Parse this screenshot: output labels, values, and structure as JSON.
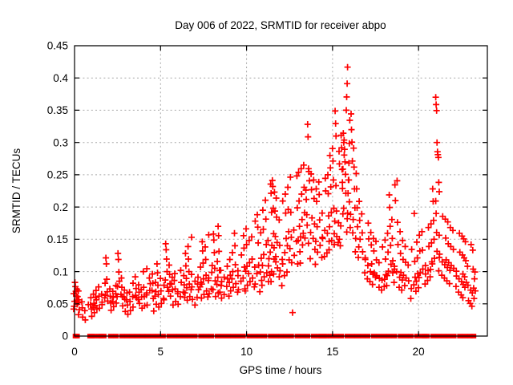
{
  "window": {
    "title": "Day 006 of 2022, SRMTID for receiver abpo"
  },
  "chart_data": {
    "type": "scatter",
    "title": "Day 006 of 2022, SRMTID for receiver abpo",
    "xlabel": "GPS time / hours",
    "ylabel": "SRMTID / TECUs",
    "xlim": [
      0,
      24
    ],
    "ylim": [
      0,
      0.45
    ],
    "x_ticks": [
      0,
      5,
      10,
      15,
      20
    ],
    "x_tick_labels": [
      "0",
      "5",
      "10",
      "15",
      "20"
    ],
    "y_ticks": [
      0,
      0.05,
      0.1,
      0.15,
      0.2,
      0.25,
      0.3,
      0.35,
      0.4,
      0.45
    ],
    "y_tick_labels": [
      "0",
      "0.05",
      "0.1",
      "0.15",
      "0.2",
      "0.25",
      "0.3",
      "0.35",
      "0.4",
      "0.45"
    ],
    "grid": true,
    "legend": "none",
    "marker": "plus",
    "marker_color": "#ff0000",
    "grid_color": "#a8a8a8",
    "frame_color": "#000000",
    "series_name": "SRMTID",
    "columns": [
      [
        0.05,
        [
          0.04,
          0.048,
          0.055,
          0.062,
          0.07,
          0.078,
          0.085,
          0.052,
          0.045,
          0.065
        ]
      ],
      [
        0.15,
        [
          0.035,
          0.05,
          0.06,
          0.072
        ]
      ],
      [
        0.25,
        [
          0.042,
          0.058,
          0.068
        ]
      ],
      [
        0.5,
        [
          0.03,
          0.045,
          0.055
        ]
      ],
      [
        0.7,
        [
          0.025,
          0.04,
          0.05
        ]
      ],
      [
        0.9,
        [
          0.03,
          0.042,
          0.06,
          0.05
        ]
      ],
      [
        1.1,
        [
          0.035,
          0.05,
          0.065,
          0.045
        ]
      ],
      [
        1.3,
        [
          0.04,
          0.055,
          0.07,
          0.06,
          0.048
        ]
      ],
      [
        1.5,
        [
          0.045,
          0.06,
          0.075,
          0.052,
          0.065
        ]
      ],
      [
        1.7,
        [
          0.05,
          0.065,
          0.08,
          0.058
        ]
      ],
      [
        1.85,
        [
          0.055,
          0.07,
          0.09,
          0.11,
          0.12
        ]
      ],
      [
        2.1,
        [
          0.04,
          0.052,
          0.063,
          0.075
        ]
      ],
      [
        2.3,
        [
          0.045,
          0.06,
          0.07,
          0.055,
          0.08
        ]
      ],
      [
        2.5,
        [
          0.05,
          0.065,
          0.085,
          0.1,
          0.12,
          0.13,
          0.075,
          0.06
        ]
      ],
      [
        2.7,
        [
          0.045,
          0.06,
          0.075,
          0.09,
          0.065
        ]
      ],
      [
        2.9,
        [
          0.04,
          0.055,
          0.07,
          0.06
        ]
      ],
      [
        3.1,
        [
          0.035,
          0.05,
          0.065,
          0.055
        ]
      ],
      [
        3.3,
        [
          0.04,
          0.055,
          0.07,
          0.08,
          0.06
        ]
      ],
      [
        3.5,
        [
          0.045,
          0.06,
          0.075,
          0.065,
          0.09
        ]
      ],
      [
        3.7,
        [
          0.05,
          0.068,
          0.08,
          0.058
        ]
      ],
      [
        3.9,
        [
          0.042,
          0.06,
          0.072
        ]
      ],
      [
        4.1,
        [
          0.045,
          0.06,
          0.075,
          0.1,
          0.105,
          0.065
        ]
      ],
      [
        4.3,
        [
          0.05,
          0.065,
          0.08,
          0.07,
          0.09
        ]
      ],
      [
        4.5,
        [
          0.04,
          0.06,
          0.08,
          0.095,
          0.07
        ]
      ],
      [
        4.7,
        [
          0.05,
          0.07,
          0.085,
          0.06
        ]
      ],
      [
        4.9,
        [
          0.045,
          0.065,
          0.08,
          0.1,
          0.11
        ]
      ],
      [
        5.1,
        [
          0.05,
          0.07,
          0.09,
          0.08,
          0.06
        ]
      ],
      [
        5.3,
        [
          0.055,
          0.075,
          0.1,
          0.12,
          0.135,
          0.145,
          0.085
        ]
      ],
      [
        5.5,
        [
          0.06,
          0.08,
          0.095,
          0.11,
          0.07
        ]
      ],
      [
        5.7,
        [
          0.05,
          0.07,
          0.09,
          0.08
        ]
      ],
      [
        5.9,
        [
          0.055,
          0.075,
          0.095,
          0.085,
          0.065
        ]
      ],
      [
        6.1,
        [
          0.05,
          0.07,
          0.085,
          0.1,
          0.06
        ]
      ],
      [
        6.3,
        [
          0.06,
          0.08,
          0.095,
          0.07
        ]
      ],
      [
        6.5,
        [
          0.055,
          0.075,
          0.09,
          0.11,
          0.13,
          0.065
        ]
      ],
      [
        6.7,
        [
          0.06,
          0.08,
          0.1,
          0.12,
          0.14,
          0.155,
          0.07
        ]
      ],
      [
        6.9,
        [
          0.055,
          0.075,
          0.095,
          0.085
        ]
      ],
      [
        7.1,
        [
          0.05,
          0.07,
          0.09,
          0.08,
          0.06
        ]
      ],
      [
        7.3,
        [
          0.06,
          0.085,
          0.105,
          0.075
        ]
      ],
      [
        7.5,
        [
          0.065,
          0.09,
          0.115,
          0.13,
          0.145,
          0.08
        ]
      ],
      [
        7.7,
        [
          0.07,
          0.095,
          0.12,
          0.14,
          0.155,
          0.085,
          0.06
        ]
      ],
      [
        7.9,
        [
          0.065,
          0.09,
          0.11,
          0.1,
          0.075
        ]
      ],
      [
        8.1,
        [
          0.06,
          0.085,
          0.105,
          0.13,
          0.15,
          0.16,
          0.07
        ]
      ],
      [
        8.3,
        [
          0.065,
          0.09,
          0.115,
          0.08
        ]
      ],
      [
        8.45,
        [
          0.07,
          0.1,
          0.13,
          0.155,
          0.17,
          0.085
        ]
      ],
      [
        8.6,
        [
          0.06,
          0.08,
          0.1,
          0.09
        ]
      ],
      [
        8.8,
        [
          0.065,
          0.09,
          0.11,
          0.075
        ]
      ],
      [
        9.0,
        [
          0.07,
          0.095,
          0.12,
          0.085,
          0.06
        ]
      ],
      [
        9.2,
        [
          0.075,
          0.1,
          0.13,
          0.09
        ]
      ],
      [
        9.4,
        [
          0.08,
          0.11,
          0.14,
          0.16,
          0.095,
          0.07
        ]
      ],
      [
        9.6,
        [
          0.07,
          0.1,
          0.125,
          0.085
        ]
      ],
      [
        9.8,
        [
          0.075,
          0.105,
          0.135,
          0.155,
          0.09
        ]
      ],
      [
        10.0,
        [
          0.08,
          0.11,
          0.14,
          0.165,
          0.1,
          0.07
        ]
      ],
      [
        10.2,
        [
          0.085,
          0.115,
          0.15,
          0.095
        ]
      ],
      [
        10.4,
        [
          0.09,
          0.12,
          0.155,
          0.18,
          0.105,
          0.075
        ]
      ],
      [
        10.6,
        [
          0.08,
          0.11,
          0.145,
          0.17,
          0.19,
          0.095
        ]
      ],
      [
        10.8,
        [
          0.085,
          0.12,
          0.16,
          0.1,
          0.07
        ]
      ],
      [
        11.0,
        [
          0.09,
          0.125,
          0.165,
          0.195,
          0.11,
          0.08
        ]
      ],
      [
        11.2,
        [
          0.1,
          0.14,
          0.18,
          0.21,
          0.12,
          0.085
        ]
      ],
      [
        11.35,
        [
          0.11,
          0.15,
          0.19,
          0.22,
          0.235,
          0.13,
          0.095
        ]
      ],
      [
        11.5,
        [
          0.12,
          0.16,
          0.2,
          0.23,
          0.24,
          0.14,
          0.1,
          0.085
        ]
      ],
      [
        11.65,
        [
          0.115,
          0.155,
          0.195,
          0.225,
          0.135,
          0.095
        ]
      ],
      [
        11.8,
        [
          0.105,
          0.145,
          0.185,
          0.215,
          0.125,
          0.09
        ]
      ],
      [
        12.0,
        [
          0.1,
          0.14,
          0.18,
          0.21,
          0.12,
          0.08
        ]
      ],
      [
        12.2,
        [
          0.11,
          0.15,
          0.19,
          0.22,
          0.13,
          0.095
        ]
      ],
      [
        12.4,
        [
          0.12,
          0.16,
          0.195,
          0.23,
          0.14,
          0.1
        ]
      ],
      [
        12.6,
        [
          0.115,
          0.155,
          0.19,
          0.245,
          0.135
        ]
      ],
      [
        12.7,
        [
          0.037
        ]
      ],
      [
        12.85,
        [
          0.125,
          0.165,
          0.2,
          0.25,
          0.145
        ]
      ],
      [
        13.0,
        [
          0.13,
          0.17,
          0.21,
          0.255,
          0.15,
          0.11
        ]
      ],
      [
        13.2,
        [
          0.14,
          0.18,
          0.22,
          0.26,
          0.155,
          0.115
        ]
      ],
      [
        13.4,
        [
          0.15,
          0.19,
          0.23,
          0.265,
          0.16
        ]
      ],
      [
        13.55,
        [
          0.19,
          0.21,
          0.225,
          0.24,
          0.255,
          0.26,
          0.31,
          0.33,
          0.17
        ]
      ],
      [
        13.7,
        [
          0.145,
          0.185,
          0.225,
          0.25,
          0.16,
          0.12
        ]
      ],
      [
        13.9,
        [
          0.135,
          0.175,
          0.215,
          0.24,
          0.15
        ]
      ],
      [
        14.1,
        [
          0.13,
          0.17,
          0.21,
          0.23,
          0.145,
          0.11
        ]
      ],
      [
        14.3,
        [
          0.14,
          0.18,
          0.22,
          0.24,
          0.155,
          0.12
        ]
      ],
      [
        14.5,
        [
          0.15,
          0.19,
          0.225,
          0.245,
          0.165,
          0.125
        ]
      ],
      [
        14.7,
        [
          0.145,
          0.185,
          0.22,
          0.25,
          0.16,
          0.13
        ]
      ],
      [
        14.9,
        [
          0.15,
          0.19,
          0.23,
          0.26,
          0.28,
          0.17,
          0.135
        ]
      ],
      [
        15.1,
        [
          0.16,
          0.2,
          0.24,
          0.27,
          0.29,
          0.31,
          0.33,
          0.35,
          0.18,
          0.14
        ]
      ],
      [
        15.3,
        [
          0.155,
          0.195,
          0.235,
          0.265,
          0.285,
          0.175,
          0.145
        ]
      ],
      [
        15.5,
        [
          0.15,
          0.19,
          0.23,
          0.26,
          0.29,
          0.31,
          0.17,
          0.14
        ]
      ],
      [
        15.6,
        [
          0.28,
          0.3,
          0.315,
          0.26,
          0.24
        ]
      ],
      [
        15.75,
        [
          0.22,
          0.25,
          0.27,
          0.29,
          0.305,
          0.2,
          0.18,
          0.16
        ]
      ],
      [
        15.9,
        [
          0.415,
          0.39,
          0.37,
          0.35,
          0.335,
          0.3,
          0.27,
          0.24,
          0.22,
          0.19
        ]
      ],
      [
        16.05,
        [
          0.21,
          0.24,
          0.27,
          0.3,
          0.32,
          0.345,
          0.19,
          0.17
        ]
      ],
      [
        16.2,
        [
          0.2,
          0.23,
          0.26,
          0.29,
          0.18,
          0.16
        ]
      ],
      [
        16.4,
        [
          0.17,
          0.2,
          0.23,
          0.25,
          0.15,
          0.13
        ]
      ],
      [
        16.6,
        [
          0.15,
          0.18,
          0.21,
          0.14,
          0.12
        ]
      ],
      [
        16.8,
        [
          0.13,
          0.16,
          0.19,
          0.12,
          0.1
        ]
      ],
      [
        17.0,
        [
          0.12,
          0.15,
          0.175,
          0.11,
          0.09
        ]
      ],
      [
        17.2,
        [
          0.11,
          0.14,
          0.16,
          0.1,
          0.085
        ]
      ],
      [
        17.4,
        [
          0.1,
          0.13,
          0.15,
          0.095,
          0.08
        ]
      ],
      [
        17.6,
        [
          0.095,
          0.12,
          0.145,
          0.09,
          0.075
        ]
      ],
      [
        17.8,
        [
          0.09,
          0.115,
          0.14,
          0.085,
          0.07
        ]
      ],
      [
        18.0,
        [
          0.095,
          0.12,
          0.15,
          0.09,
          0.075
        ]
      ],
      [
        18.2,
        [
          0.1,
          0.13,
          0.16,
          0.095,
          0.08
        ]
      ],
      [
        18.4,
        [
          0.11,
          0.14,
          0.17,
          0.2,
          0.22,
          0.1
        ]
      ],
      [
        18.55,
        [
          0.115,
          0.15,
          0.18,
          0.21,
          0.235,
          0.105,
          0.085
        ]
      ],
      [
        18.7,
        [
          0.11,
          0.14,
          0.175,
          0.24,
          0.1
        ]
      ],
      [
        18.9,
        [
          0.1,
          0.13,
          0.16,
          0.09,
          0.075
        ]
      ],
      [
        19.1,
        [
          0.095,
          0.12,
          0.15,
          0.085,
          0.07
        ]
      ],
      [
        19.3,
        [
          0.09,
          0.115,
          0.14,
          0.08
        ]
      ],
      [
        19.5,
        [
          0.085,
          0.11,
          0.135,
          0.075,
          0.06
        ]
      ],
      [
        19.7,
        [
          0.09,
          0.115,
          0.19,
          0.08
        ]
      ],
      [
        19.9,
        [
          0.095,
          0.12,
          0.145,
          0.085,
          0.07
        ]
      ],
      [
        20.1,
        [
          0.1,
          0.13,
          0.155,
          0.09,
          0.075
        ]
      ],
      [
        20.3,
        [
          0.105,
          0.135,
          0.16,
          0.095,
          0.08
        ]
      ],
      [
        20.5,
        [
          0.11,
          0.14,
          0.17,
          0.1,
          0.085
        ]
      ],
      [
        20.7,
        [
          0.115,
          0.145,
          0.175,
          0.105,
          0.09
        ]
      ],
      [
        20.9,
        [
          0.12,
          0.15,
          0.18,
          0.21,
          0.23,
          0.11
        ]
      ],
      [
        21.1,
        [
          0.13,
          0.16,
          0.19,
          0.21,
          0.225,
          0.24,
          0.275,
          0.28,
          0.285,
          0.3,
          0.35,
          0.36,
          0.372,
          0.12,
          0.1
        ]
      ],
      [
        21.3,
        [
          0.125,
          0.155,
          0.185,
          0.115,
          0.095
        ]
      ],
      [
        21.5,
        [
          0.12,
          0.15,
          0.18,
          0.11,
          0.09
        ]
      ],
      [
        21.7,
        [
          0.115,
          0.145,
          0.175,
          0.105,
          0.085
        ]
      ],
      [
        21.9,
        [
          0.11,
          0.14,
          0.17,
          0.1,
          0.08
        ]
      ],
      [
        22.1,
        [
          0.105,
          0.135,
          0.165,
          0.095,
          0.075
        ]
      ],
      [
        22.3,
        [
          0.1,
          0.13,
          0.16,
          0.09,
          0.07
        ]
      ],
      [
        22.5,
        [
          0.095,
          0.125,
          0.155,
          0.085,
          0.065
        ]
      ],
      [
        22.65,
        [
          0.09,
          0.12,
          0.15,
          0.08,
          0.06
        ]
      ],
      [
        22.8,
        [
          0.085,
          0.115,
          0.145,
          0.075,
          0.055
        ]
      ],
      [
        22.95,
        [
          0.08,
          0.11,
          0.14,
          0.07,
          0.05
        ]
      ],
      [
        23.1,
        [
          0.075,
          0.105,
          0.135,
          0.065,
          0.045
        ]
      ],
      [
        23.25,
        [
          0.07,
          0.1,
          0.09,
          0.06
        ]
      ]
    ],
    "zero_row_hours": [
      0.05,
      0.15,
      0.9,
      1.0,
      1.15,
      1.45,
      1.55,
      1.7,
      2.1,
      2.4,
      2.75,
      3.05,
      3.35,
      3.65,
      3.95,
      4.25,
      4.55,
      4.85,
      5.15,
      5.5,
      5.8,
      6.1,
      6.4,
      6.7,
      7.0,
      7.35,
      7.65,
      7.95,
      8.3,
      8.6,
      8.9,
      9.2,
      9.5,
      9.8,
      10.15,
      10.45,
      10.75,
      11.05,
      11.4,
      11.7,
      12.0,
      12.3,
      12.6,
      12.95,
      13.25,
      13.55,
      13.9,
      14.2,
      14.35,
      14.5,
      14.65,
      14.9,
      15.2,
      15.5,
      15.85,
      16.15,
      16.45,
      16.75,
      17.05,
      17.4,
      17.7,
      18.0,
      18.3,
      18.6,
      18.95,
      19.25,
      19.55,
      19.9,
      20.2,
      20.35,
      20.5,
      20.85,
      21.15,
      21.45,
      21.75,
      22.05,
      22.4,
      22.7,
      23.0,
      23.2
    ]
  }
}
